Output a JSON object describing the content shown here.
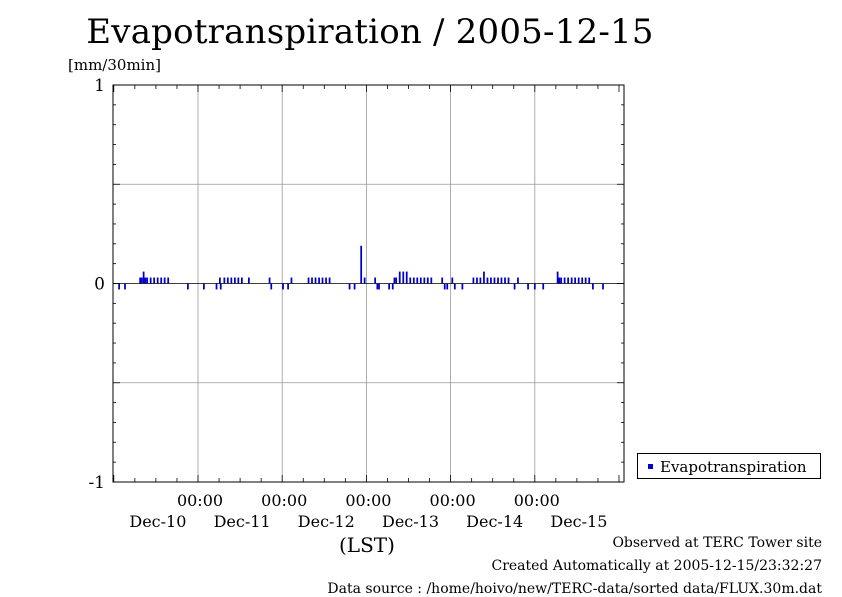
{
  "title": "Evapotranspiration / 2005-12-15",
  "unit_label": "[mm/30min]",
  "x_axis_caption": "(LST)",
  "legend": {
    "label": "Evapotranspiration",
    "color": "#0000cc"
  },
  "footer": {
    "observed": "Observed at TERC Tower site",
    "created": "Created Automatically at 2005-12-15/23:32:27",
    "source": "Data source : /home/hoivo/new/TERC-data/sorted  data/FLUX.30m.dat"
  },
  "chart_data": {
    "type": "bar",
    "ylim": [
      -1,
      1
    ],
    "y_ticks": [
      "1",
      "0",
      "-1"
    ],
    "y_tick_values": [
      1,
      0,
      -1
    ],
    "x_range_days": [
      0,
      6
    ],
    "x_tick_time_labels": [
      "00:00",
      "00:00",
      "00:00",
      "00:00",
      "00:00"
    ],
    "x_date_labels": [
      "Dec-10",
      "Dec-11",
      "Dec-12",
      "Dec-13",
      "Dec-14",
      "Dec-15"
    ],
    "grid": true,
    "series": [
      {
        "name": "Evapotranspiration",
        "color": "#0000cc",
        "bar_width_hours": 0.5,
        "points": [
          {
            "t": 0.063,
            "v": -0.03
          },
          {
            "t": 0.133,
            "v": -0.03
          },
          {
            "t": 0.313,
            "v": 0.03
          },
          {
            "t": 0.333,
            "v": 0.03
          },
          {
            "t": 0.354,
            "v": 0.06
          },
          {
            "t": 0.375,
            "v": 0.03
          },
          {
            "t": 0.396,
            "v": 0.03
          },
          {
            "t": 0.438,
            "v": 0.03
          },
          {
            "t": 0.479,
            "v": 0.03
          },
          {
            "t": 0.521,
            "v": 0.03
          },
          {
            "t": 0.563,
            "v": 0.03
          },
          {
            "t": 0.604,
            "v": 0.03
          },
          {
            "t": 0.646,
            "v": 0.03
          },
          {
            "t": 0.88,
            "v": -0.03
          },
          {
            "t": 1.07,
            "v": -0.03
          },
          {
            "t": 1.22,
            "v": -0.03
          },
          {
            "t": 1.26,
            "v": 0.03
          },
          {
            "t": 1.27,
            "v": -0.03
          },
          {
            "t": 1.313,
            "v": 0.03
          },
          {
            "t": 1.354,
            "v": 0.03
          },
          {
            "t": 1.396,
            "v": 0.03
          },
          {
            "t": 1.438,
            "v": 0.03
          },
          {
            "t": 1.479,
            "v": 0.03
          },
          {
            "t": 1.521,
            "v": 0.03
          },
          {
            "t": 1.604,
            "v": 0.03
          },
          {
            "t": 1.85,
            "v": 0.03
          },
          {
            "t": 1.87,
            "v": -0.03
          },
          {
            "t": 2.01,
            "v": -0.03
          },
          {
            "t": 2.07,
            "v": -0.03
          },
          {
            "t": 2.11,
            "v": 0.03
          },
          {
            "t": 2.313,
            "v": 0.03
          },
          {
            "t": 2.354,
            "v": 0.03
          },
          {
            "t": 2.396,
            "v": 0.03
          },
          {
            "t": 2.438,
            "v": 0.03
          },
          {
            "t": 2.479,
            "v": 0.03
          },
          {
            "t": 2.521,
            "v": 0.03
          },
          {
            "t": 2.563,
            "v": 0.03
          },
          {
            "t": 2.8,
            "v": -0.03
          },
          {
            "t": 2.86,
            "v": -0.03
          },
          {
            "t": 2.938,
            "v": 0.19
          },
          {
            "t": 2.979,
            "v": 0.03
          },
          {
            "t": 3.104,
            "v": 0.03
          },
          {
            "t": 3.13,
            "v": -0.03
          },
          {
            "t": 3.15,
            "v": -0.03
          },
          {
            "t": 3.27,
            "v": -0.03
          },
          {
            "t": 3.313,
            "v": -0.03
          },
          {
            "t": 3.333,
            "v": 0.03
          },
          {
            "t": 3.354,
            "v": 0.03
          },
          {
            "t": 3.396,
            "v": 0.06
          },
          {
            "t": 3.438,
            "v": 0.06
          },
          {
            "t": 3.479,
            "v": 0.06
          },
          {
            "t": 3.521,
            "v": 0.03
          },
          {
            "t": 3.563,
            "v": 0.03
          },
          {
            "t": 3.604,
            "v": 0.03
          },
          {
            "t": 3.646,
            "v": 0.03
          },
          {
            "t": 3.688,
            "v": 0.03
          },
          {
            "t": 3.729,
            "v": 0.03
          },
          {
            "t": 3.771,
            "v": 0.03
          },
          {
            "t": 3.9,
            "v": 0.03
          },
          {
            "t": 3.93,
            "v": -0.03
          },
          {
            "t": 3.96,
            "v": -0.03
          },
          {
            "t": 4.02,
            "v": 0.03
          },
          {
            "t": 4.05,
            "v": -0.03
          },
          {
            "t": 4.14,
            "v": -0.03
          },
          {
            "t": 4.271,
            "v": 0.03
          },
          {
            "t": 4.313,
            "v": 0.03
          },
          {
            "t": 4.354,
            "v": 0.03
          },
          {
            "t": 4.396,
            "v": 0.06
          },
          {
            "t": 4.438,
            "v": 0.03
          },
          {
            "t": 4.479,
            "v": 0.03
          },
          {
            "t": 4.521,
            "v": 0.03
          },
          {
            "t": 4.563,
            "v": 0.03
          },
          {
            "t": 4.604,
            "v": 0.03
          },
          {
            "t": 4.646,
            "v": 0.03
          },
          {
            "t": 4.688,
            "v": 0.03
          },
          {
            "t": 4.76,
            "v": -0.03
          },
          {
            "t": 4.8,
            "v": 0.03
          },
          {
            "t": 4.92,
            "v": -0.03
          },
          {
            "t": 5.0,
            "v": -0.03
          },
          {
            "t": 5.1,
            "v": -0.03
          },
          {
            "t": 5.271,
            "v": 0.06
          },
          {
            "t": 5.292,
            "v": 0.03
          },
          {
            "t": 5.313,
            "v": 0.03
          },
          {
            "t": 5.354,
            "v": 0.03
          },
          {
            "t": 5.396,
            "v": 0.03
          },
          {
            "t": 5.438,
            "v": 0.03
          },
          {
            "t": 5.479,
            "v": 0.03
          },
          {
            "t": 5.521,
            "v": 0.03
          },
          {
            "t": 5.563,
            "v": 0.03
          },
          {
            "t": 5.604,
            "v": 0.03
          },
          {
            "t": 5.646,
            "v": 0.03
          },
          {
            "t": 5.69,
            "v": -0.03
          },
          {
            "t": 5.81,
            "v": -0.03
          }
        ]
      }
    ]
  }
}
